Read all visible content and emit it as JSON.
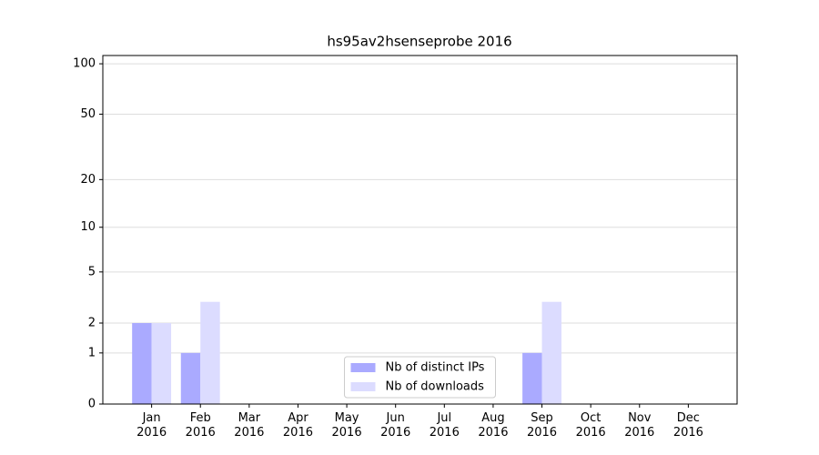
{
  "chart_data": {
    "type": "bar",
    "title": "hs95av2hsenseprobe 2016",
    "categories": [
      "Jan\n2016",
      "Feb\n2016",
      "Mar\n2016",
      "Apr\n2016",
      "May\n2016",
      "Jun\n2016",
      "Jul\n2016",
      "Aug\n2016",
      "Sep\n2016",
      "Oct\n2016",
      "Nov\n2016",
      "Dec\n2016"
    ],
    "series": [
      {
        "name": "Nb of distinct IPs",
        "color": "#aaaaff",
        "values": [
          2,
          1,
          0,
          0,
          0,
          0,
          0,
          0,
          1,
          0,
          0,
          0
        ]
      },
      {
        "name": "Nb of downloads",
        "color": "#dcdcff",
        "values": [
          2,
          3,
          0,
          0,
          0,
          0,
          0,
          0,
          3,
          0,
          0,
          0
        ]
      }
    ],
    "yscale": "log1p",
    "ylim": [
      0,
      112
    ],
    "yticks": [
      0,
      1,
      2,
      5,
      10,
      20,
      50,
      100
    ],
    "grid": true,
    "legend": "lower center"
  }
}
